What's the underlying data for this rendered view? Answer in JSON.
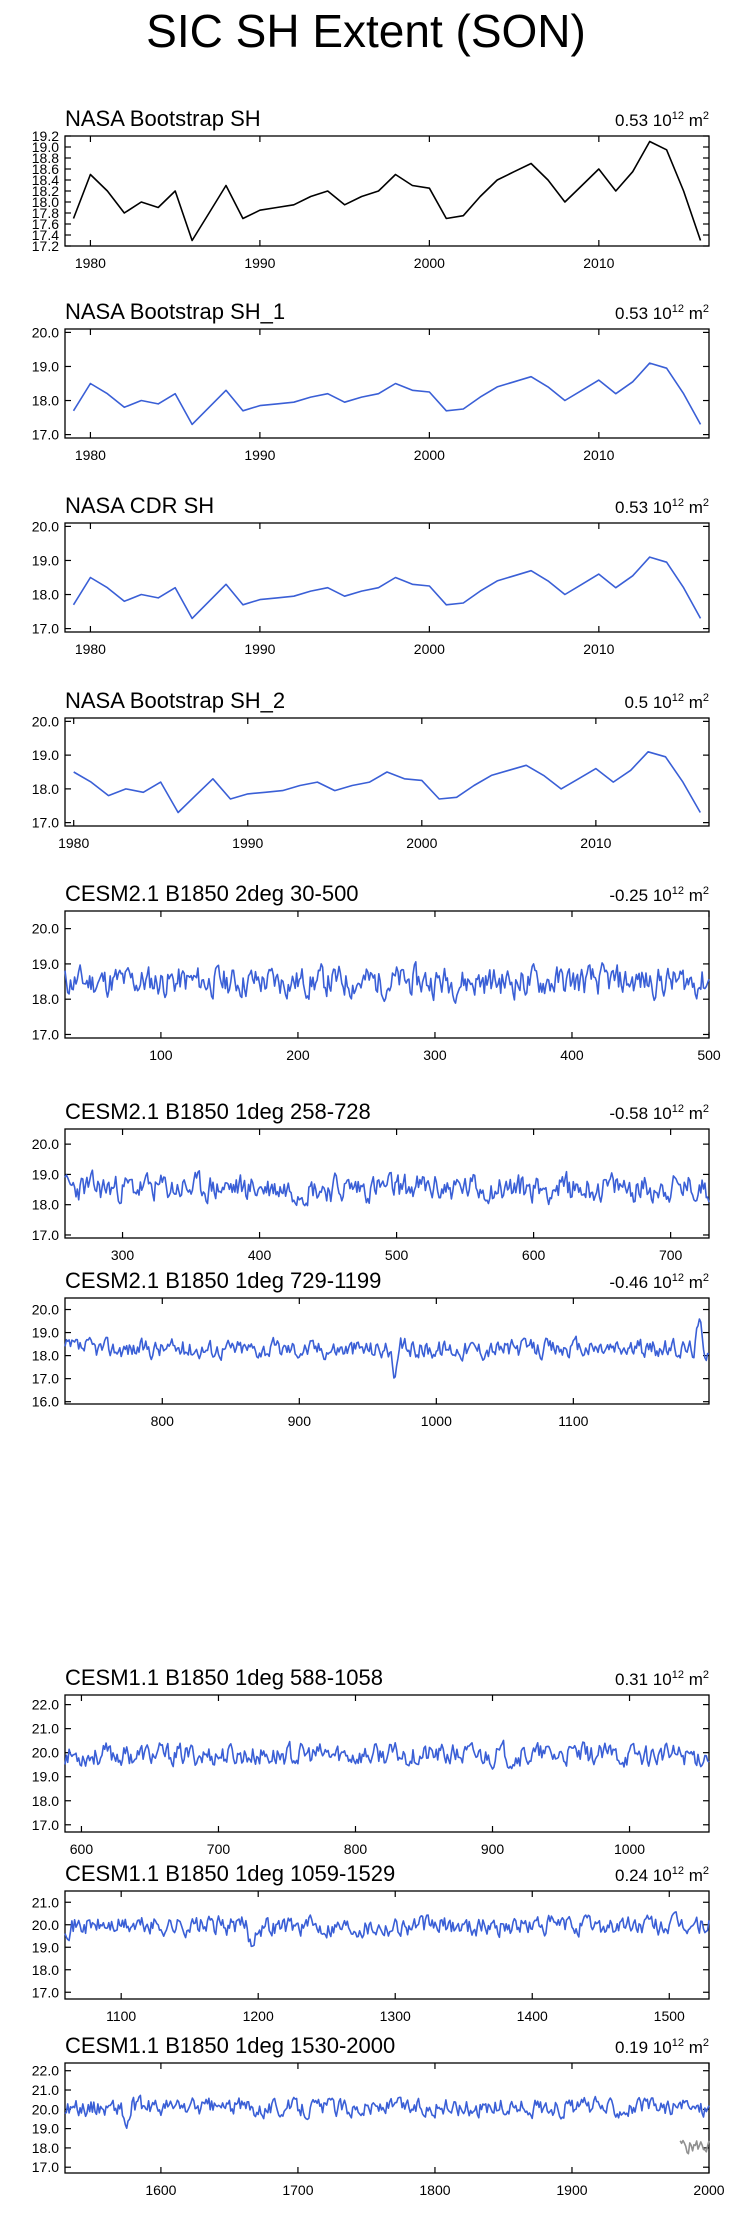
{
  "title": "SIC SH Extent (SON)",
  "colors": {
    "obs_line": "#000000",
    "model_line": "#3a5fd6",
    "overlay_line": "#909090"
  },
  "chart_data": [
    {
      "type": "line",
      "title": "NASA Bootstrap SH",
      "value": "0.53",
      "unit_text": "10",
      "unit_exp": "12",
      "unit_suffix": "m",
      "unit_suffix_exp": "2",
      "color_key": "obs_line",
      "xlim": [
        1978.5,
        2016.5
      ],
      "ylim": [
        17.2,
        19.2
      ],
      "xticks": [
        1980,
        1990,
        2000,
        2010
      ],
      "yticks": [
        17.2,
        17.4,
        17.6,
        17.8,
        18.0,
        18.2,
        18.4,
        18.6,
        18.8,
        19.0,
        19.2
      ],
      "ytick_labels": [
        "17.2",
        "17.4",
        "17.6",
        "17.8",
        "18.0",
        "18.2",
        "18.4",
        "18.6",
        "18.8",
        "19.0",
        "19.2"
      ],
      "x": [
        1979,
        1980,
        1981,
        1982,
        1983,
        1984,
        1985,
        1986,
        1987,
        1988,
        1989,
        1990,
        1991,
        1992,
        1993,
        1994,
        1995,
        1996,
        1997,
        1998,
        1999,
        2000,
        2001,
        2002,
        2003,
        2004,
        2005,
        2006,
        2007,
        2008,
        2009,
        2010,
        2011,
        2012,
        2013,
        2014,
        2015,
        2016
      ],
      "y": [
        17.7,
        18.5,
        18.2,
        17.8,
        18.0,
        17.9,
        18.2,
        17.3,
        17.8,
        18.3,
        17.7,
        17.85,
        17.9,
        17.95,
        18.1,
        18.2,
        17.95,
        18.1,
        18.2,
        18.5,
        18.3,
        18.25,
        17.7,
        17.75,
        18.1,
        18.4,
        18.55,
        18.7,
        18.4,
        18.0,
        18.3,
        18.6,
        18.2,
        18.55,
        19.1,
        18.95,
        18.2,
        17.3
      ]
    },
    {
      "type": "line",
      "title": "NASA Bootstrap SH_1",
      "value": "0.53",
      "unit_text": "10",
      "unit_exp": "12",
      "unit_suffix": "m",
      "unit_suffix_exp": "2",
      "color_key": "model_line",
      "xlim": [
        1978.5,
        2016.5
      ],
      "ylim": [
        16.9,
        20.1
      ],
      "xticks": [
        1980,
        1990,
        2000,
        2010
      ],
      "yticks": [
        17.0,
        18.0,
        19.0,
        20.0
      ],
      "ytick_labels": [
        "17.0",
        "18.0",
        "19.0",
        "20.0"
      ],
      "x": [
        1979,
        1980,
        1981,
        1982,
        1983,
        1984,
        1985,
        1986,
        1987,
        1988,
        1989,
        1990,
        1991,
        1992,
        1993,
        1994,
        1995,
        1996,
        1997,
        1998,
        1999,
        2000,
        2001,
        2002,
        2003,
        2004,
        2005,
        2006,
        2007,
        2008,
        2009,
        2010,
        2011,
        2012,
        2013,
        2014,
        2015,
        2016
      ],
      "y": [
        17.7,
        18.5,
        18.2,
        17.8,
        18.0,
        17.9,
        18.2,
        17.3,
        17.8,
        18.3,
        17.7,
        17.85,
        17.9,
        17.95,
        18.1,
        18.2,
        17.95,
        18.1,
        18.2,
        18.5,
        18.3,
        18.25,
        17.7,
        17.75,
        18.1,
        18.4,
        18.55,
        18.7,
        18.4,
        18.0,
        18.3,
        18.6,
        18.2,
        18.55,
        19.1,
        18.95,
        18.2,
        17.3
      ]
    },
    {
      "type": "line",
      "title": "NASA CDR SH",
      "value": "0.53",
      "unit_text": "10",
      "unit_exp": "12",
      "unit_suffix": "m",
      "unit_suffix_exp": "2",
      "color_key": "model_line",
      "xlim": [
        1978.5,
        2016.5
      ],
      "ylim": [
        16.9,
        20.1
      ],
      "xticks": [
        1980,
        1990,
        2000,
        2010
      ],
      "yticks": [
        17.0,
        18.0,
        19.0,
        20.0
      ],
      "ytick_labels": [
        "17.0",
        "18.0",
        "19.0",
        "20.0"
      ],
      "x": [
        1979,
        1980,
        1981,
        1982,
        1983,
        1984,
        1985,
        1986,
        1987,
        1988,
        1989,
        1990,
        1991,
        1992,
        1993,
        1994,
        1995,
        1996,
        1997,
        1998,
        1999,
        2000,
        2001,
        2002,
        2003,
        2004,
        2005,
        2006,
        2007,
        2008,
        2009,
        2010,
        2011,
        2012,
        2013,
        2014,
        2015,
        2016
      ],
      "y": [
        17.7,
        18.5,
        18.2,
        17.8,
        18.0,
        17.9,
        18.2,
        17.3,
        17.8,
        18.3,
        17.7,
        17.85,
        17.9,
        17.95,
        18.1,
        18.2,
        17.95,
        18.1,
        18.2,
        18.5,
        18.3,
        18.25,
        17.7,
        17.75,
        18.1,
        18.4,
        18.55,
        18.7,
        18.4,
        18.0,
        18.3,
        18.6,
        18.2,
        18.55,
        19.1,
        18.95,
        18.2,
        17.3
      ]
    },
    {
      "type": "line",
      "title": "NASA Bootstrap SH_2",
      "value": "0.5",
      "unit_text": "10",
      "unit_exp": "12",
      "unit_suffix": "m",
      "unit_suffix_exp": "2",
      "color_key": "model_line",
      "xlim": [
        1979.5,
        2016.5
      ],
      "ylim": [
        16.9,
        20.1
      ],
      "xticks": [
        1980,
        1990,
        2000,
        2010
      ],
      "yticks": [
        17.0,
        18.0,
        19.0,
        20.0
      ],
      "ytick_labels": [
        "17.0",
        "18.0",
        "19.0",
        "20.0"
      ],
      "x": [
        1980,
        1981,
        1982,
        1983,
        1984,
        1985,
        1986,
        1987,
        1988,
        1989,
        1990,
        1991,
        1992,
        1993,
        1994,
        1995,
        1996,
        1997,
        1998,
        1999,
        2000,
        2001,
        2002,
        2003,
        2004,
        2005,
        2006,
        2007,
        2008,
        2009,
        2010,
        2011,
        2012,
        2013,
        2014,
        2015,
        2016
      ],
      "y": [
        18.5,
        18.2,
        17.8,
        18.0,
        17.9,
        18.2,
        17.3,
        17.8,
        18.3,
        17.7,
        17.85,
        17.9,
        17.95,
        18.1,
        18.2,
        17.95,
        18.1,
        18.2,
        18.5,
        18.3,
        18.25,
        17.7,
        17.75,
        18.1,
        18.4,
        18.55,
        18.7,
        18.4,
        18.0,
        18.3,
        18.6,
        18.2,
        18.55,
        19.1,
        18.95,
        18.2,
        17.3
      ]
    },
    {
      "type": "line",
      "title": "CESM2.1 B1850 2deg 30-500",
      "value": "-0.25",
      "unit_text": "10",
      "unit_exp": "12",
      "unit_suffix": "m",
      "unit_suffix_exp": "2",
      "color_key": "model_line",
      "xlim": [
        30,
        500
      ],
      "ylim": [
        16.9,
        20.5
      ],
      "xticks": [
        100,
        200,
        300,
        400,
        500
      ],
      "yticks": [
        17.0,
        18.0,
        19.0,
        20.0
      ],
      "ytick_labels": [
        "17.0",
        "18.0",
        "19.0",
        "20.0"
      ],
      "series_gen": {
        "start": 30,
        "end": 500,
        "mean": 18.5,
        "amp": 0.38,
        "seed": 11,
        "events": []
      }
    },
    {
      "type": "line",
      "title": "CESM2.1 B1850 1deg 258-728",
      "value": "-0.58",
      "unit_text": "10",
      "unit_exp": "12",
      "unit_suffix": "m",
      "unit_suffix_exp": "2",
      "color_key": "model_line",
      "xlim": [
        258,
        728
      ],
      "ylim": [
        16.9,
        20.5
      ],
      "xticks": [
        300,
        400,
        500,
        600,
        700
      ],
      "yticks": [
        17.0,
        18.0,
        19.0,
        20.0
      ],
      "ytick_labels": [
        "17.0",
        "18.0",
        "19.0",
        "20.0"
      ],
      "series_gen": {
        "start": 258,
        "end": 728,
        "mean": 18.55,
        "amp": 0.4,
        "seed": 23,
        "events": []
      }
    },
    {
      "type": "line",
      "title": "CESM2.1 B1850 1deg 729-1199",
      "value": "-0.46",
      "unit_text": "10",
      "unit_exp": "12",
      "unit_suffix": "m",
      "unit_suffix_exp": "2",
      "color_key": "model_line",
      "xlim": [
        729,
        1199
      ],
      "ylim": [
        15.9,
        20.5
      ],
      "xticks": [
        800,
        900,
        1000,
        1100
      ],
      "yticks": [
        16.0,
        17.0,
        18.0,
        19.0,
        20.0
      ],
      "ytick_labels": [
        "16.0",
        "17.0",
        "18.0",
        "19.0",
        "20.0"
      ],
      "series_gen": {
        "start": 729,
        "end": 1199,
        "mean": 18.3,
        "amp": 0.36,
        "seed": 37,
        "events": [
          [
            970,
            -1.5
          ],
          [
            1192,
            1.1
          ]
        ]
      }
    },
    {
      "type": "line",
      "title": "CESM1.1 B1850 1deg 588-1058",
      "value": "0.31",
      "unit_text": "10",
      "unit_exp": "12",
      "unit_suffix": "m",
      "unit_suffix_exp": "2",
      "color_key": "model_line",
      "xlim": [
        588,
        1058
      ],
      "ylim": [
        16.7,
        22.4
      ],
      "xticks": [
        600,
        700,
        800,
        900,
        1000
      ],
      "yticks": [
        17.0,
        18.0,
        19.0,
        20.0,
        21.0,
        22.0
      ],
      "ytick_labels": [
        "17.0",
        "18.0",
        "19.0",
        "20.0",
        "21.0",
        "22.0"
      ],
      "series_gen": {
        "start": 588,
        "end": 1058,
        "mean": 19.9,
        "amp": 0.4,
        "seed": 53,
        "events": []
      }
    },
    {
      "type": "line",
      "title": "CESM1.1 B1850 1deg 1059-1529",
      "value": "0.24",
      "unit_text": "10",
      "unit_exp": "12",
      "unit_suffix": "m",
      "unit_suffix_exp": "2",
      "color_key": "model_line",
      "xlim": [
        1059,
        1529
      ],
      "ylim": [
        16.7,
        21.5
      ],
      "xticks": [
        1100,
        1200,
        1300,
        1400,
        1500
      ],
      "yticks": [
        17.0,
        18.0,
        19.0,
        20.0,
        21.0
      ],
      "ytick_labels": [
        "17.0",
        "18.0",
        "19.0",
        "20.0",
        "21.0"
      ],
      "series_gen": {
        "start": 1059,
        "end": 1529,
        "mean": 19.95,
        "amp": 0.38,
        "seed": 71,
        "events": [
          [
            1195,
            -0.9
          ]
        ]
      }
    },
    {
      "type": "line",
      "title": "CESM1.1 B1850 1deg 1530-2000",
      "value": "0.19",
      "unit_text": "10",
      "unit_exp": "12",
      "unit_suffix": "m",
      "unit_suffix_exp": "2",
      "color_key": "model_line",
      "xlim": [
        1530,
        2000
      ],
      "ylim": [
        16.7,
        22.4
      ],
      "xticks": [
        1600,
        1700,
        1800,
        1900,
        2000
      ],
      "yticks": [
        17.0,
        18.0,
        19.0,
        20.0,
        21.0,
        22.0
      ],
      "ytick_labels": [
        "17.0",
        "18.0",
        "19.0",
        "20.0",
        "21.0",
        "22.0"
      ],
      "series_gen": {
        "start": 1530,
        "end": 2000,
        "mean": 20.1,
        "amp": 0.4,
        "seed": 89,
        "events": [
          [
            1575,
            -1.1
          ]
        ]
      },
      "overlay": {
        "color_key": "overlay_line",
        "series_gen": {
          "start": 1979,
          "end": 2000,
          "mean": 18.1,
          "amp": 0.35,
          "seed": 5,
          "events": []
        }
      }
    }
  ]
}
